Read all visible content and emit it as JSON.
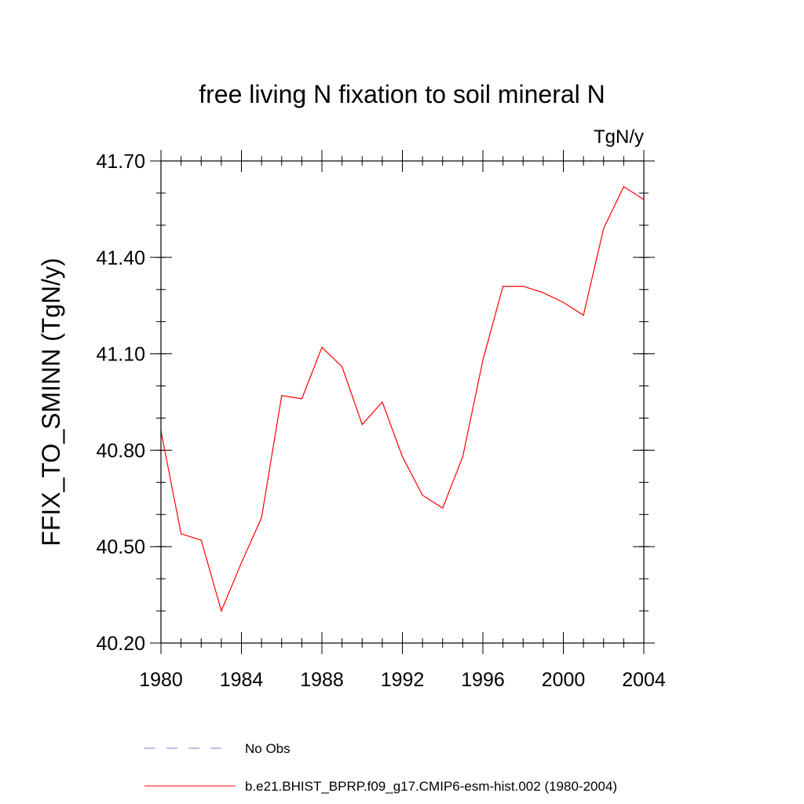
{
  "chart_data": {
    "type": "line",
    "title": "free living N fixation to soil mineral N",
    "units_label": "TgN/y",
    "xlabel": "",
    "ylabel": "FFIX_TO_SMINN  (TgN/y)",
    "xlim": [
      1980,
      2004
    ],
    "ylim": [
      40.2,
      41.7
    ],
    "x_ticks": [
      1980,
      1984,
      1988,
      1992,
      1996,
      2000,
      2004
    ],
    "x_tick_labels": [
      "1980",
      "1984",
      "1988",
      "1992",
      "1996",
      "2000",
      "2004"
    ],
    "y_ticks": [
      40.2,
      40.5,
      40.8,
      41.1,
      41.4,
      41.7
    ],
    "y_tick_labels": [
      "40.20",
      "40.50",
      "40.80",
      "41.10",
      "41.40",
      "41.70"
    ],
    "y_minor_step": 0.1,
    "x_minor_step": 1,
    "x": [
      1980,
      1981,
      1982,
      1983,
      1984,
      1985,
      1986,
      1987,
      1988,
      1989,
      1990,
      1991,
      1992,
      1993,
      1994,
      1995,
      1996,
      1997,
      1998,
      1999,
      2000,
      2001,
      2002,
      2003,
      2004
    ],
    "series": [
      {
        "name": "b.e21.BHIST_BPRP.f09_g17.CMIP6-esm-hist.002 (1980-2004)",
        "color": "#ff0000",
        "values": [
          40.86,
          40.54,
          40.52,
          40.3,
          40.45,
          40.59,
          40.97,
          40.96,
          41.12,
          41.06,
          40.88,
          40.95,
          40.78,
          40.66,
          40.62,
          40.78,
          41.08,
          41.31,
          41.31,
          41.29,
          41.26,
          41.22,
          41.49,
          41.62,
          41.58
        ]
      }
    ],
    "legend": [
      {
        "label": "No Obs",
        "style": "dashed",
        "color": "#8080c0"
      },
      {
        "label": "b.e21.BHIST_BPRP.f09_g17.CMIP6-esm-hist.002 (1980-2004)",
        "style": "solid",
        "color": "#ff0000"
      }
    ]
  }
}
